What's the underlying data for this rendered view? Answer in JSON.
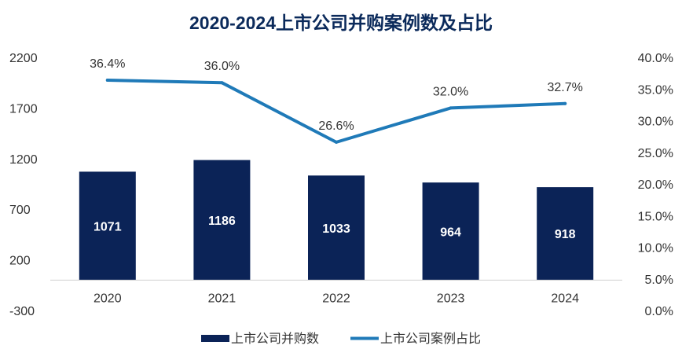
{
  "chart_data": {
    "type": "bar",
    "title": "2020-2024上市公司并购案例数及占比",
    "categories": [
      "2020",
      "2021",
      "2022",
      "2023",
      "2024"
    ],
    "series": [
      {
        "name": "上市公司并购数",
        "type": "bar",
        "axis": "left",
        "values": [
          1071,
          1186,
          1033,
          964,
          918
        ],
        "data_labels": [
          "1071",
          "1186",
          "1033",
          "964",
          "918"
        ],
        "color": "#0b2357"
      },
      {
        "name": "上市公司案例占比",
        "type": "line",
        "axis": "right",
        "values": [
          36.4,
          36.0,
          26.6,
          32.0,
          32.7
        ],
        "data_labels": [
          "36.4%",
          "36.0%",
          "26.6%",
          "32.0%",
          "32.7%"
        ],
        "color": "#1f7ab8"
      }
    ],
    "y_left": {
      "ylim": [
        -300,
        2200
      ],
      "ticks": [
        2200,
        1700,
        1200,
        700,
        200,
        -300
      ],
      "tick_labels": [
        "2200",
        "1700",
        "1200",
        "700",
        "200",
        "-300"
      ]
    },
    "y_right": {
      "ylim": [
        0,
        40
      ],
      "ticks": [
        40,
        35,
        30,
        25,
        20,
        15,
        10,
        5,
        0
      ],
      "tick_labels": [
        "40.0%",
        "35.0%",
        "30.0%",
        "25.0%",
        "20.0%",
        "15.0%",
        "10.0%",
        "5.0%",
        "0.0%"
      ]
    },
    "legend": "bottom",
    "grid": false
  }
}
